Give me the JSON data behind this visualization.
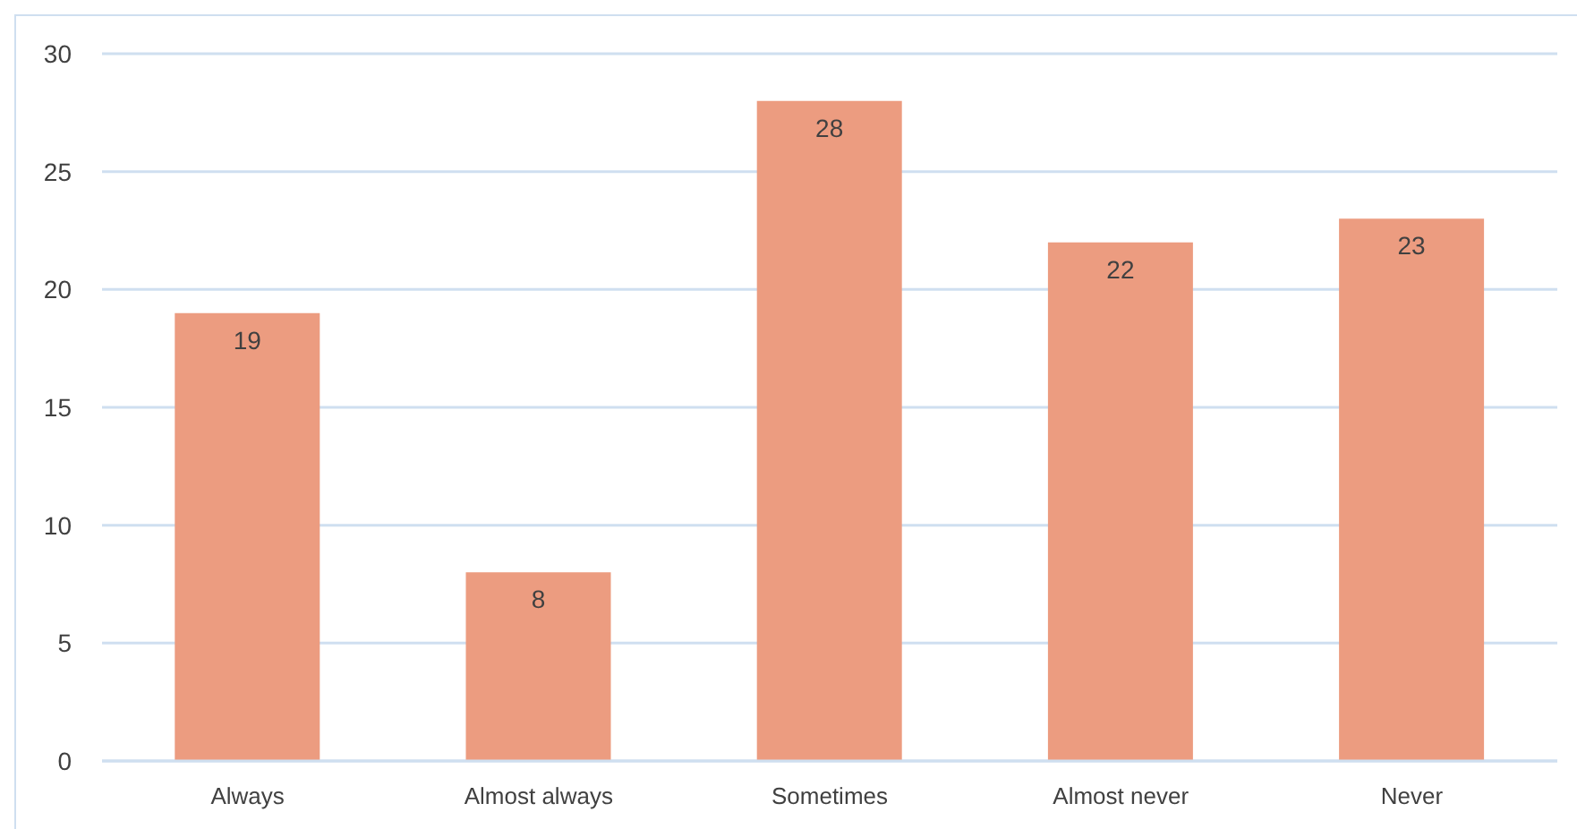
{
  "chart_data": {
    "type": "bar",
    "categories": [
      "Always",
      "Almost always",
      "Sometimes",
      "Almost never",
      "Never"
    ],
    "values": [
      19,
      8,
      28,
      22,
      23
    ],
    "color": "#ec9c80",
    "ylim": [
      0,
      30
    ],
    "yticks": [
      0,
      5,
      10,
      15,
      20,
      25,
      30
    ],
    "grid": "y",
    "data_labels": true
  }
}
